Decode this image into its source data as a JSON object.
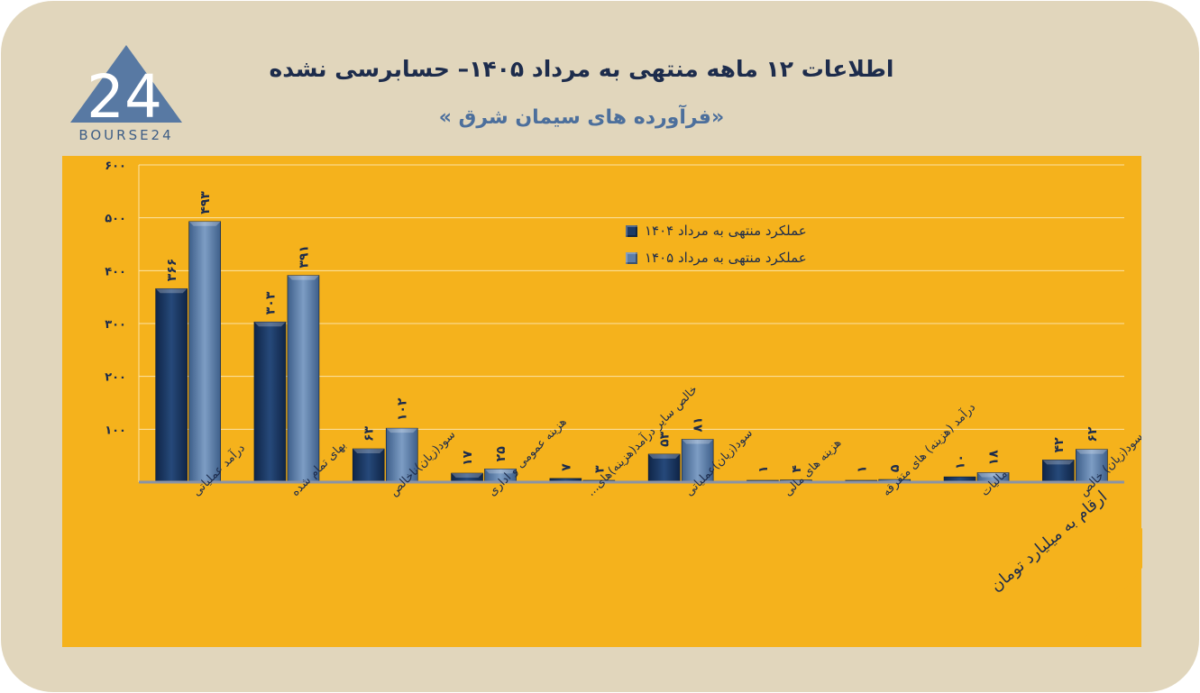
{
  "header": {
    "title": "اطلاعات ۱۲ ماهه منتهی به مرداد ۱۴۰۵– حسابرسی نشده",
    "subtitle": "«فرآورده های سیمان شرق »"
  },
  "logo": {
    "mark": "24",
    "text": "BOURSE24"
  },
  "unit_note": "ارقام به میلیارد تومان",
  "colors": {
    "panel": "#f5b21c",
    "card": "#e1d6bc",
    "series_1404": "#1d3b66",
    "series_1405": "#5d7ea8",
    "title": "#1d2c4c"
  },
  "chart_data": {
    "type": "bar",
    "categories": [
      "درآمد عملیاتی",
      "بهای تمام شده",
      "سود(زیان)ناخالص",
      "هزینه عمومی و اداری",
      "خالص سایر درآمد(هزینه)های...",
      "سود(زیان)عملیاتی",
      "هزینه های مالی",
      "درآمد (هزینه) های متفرقه",
      "مالیات",
      "سود(زیان) خالص"
    ],
    "series": [
      {
        "name": "عملکرد منتهی به مرداد ۱۴۰۴",
        "values": [
          366,
          303,
          63,
          17,
          7,
          53,
          1,
          1,
          10,
          42
        ],
        "labels": [
          "۳۶۶",
          "۳۰۳",
          "۶۳",
          "۱۷",
          "۷",
          "۵۳",
          "۱",
          "۱",
          "۱۰",
          "۴۲"
        ]
      },
      {
        "name": "عملکرد منتهی به مرداد ۱۴۰۵",
        "values": [
          493,
          391,
          102,
          25,
          3,
          81,
          4,
          5,
          18,
          62
        ],
        "labels": [
          "۴۹۳",
          "۳۹۱",
          "۱۰۲",
          "۲۵",
          "۳",
          "۸۱",
          "۴",
          "۵",
          "۱۸",
          "۶۲"
        ]
      }
    ],
    "ylim": [
      0,
      600
    ],
    "yticks": [
      {
        "value": 100,
        "label": "۱۰۰"
      },
      {
        "value": 200,
        "label": "۲۰۰"
      },
      {
        "value": 300,
        "label": "۳۰۰"
      },
      {
        "value": 400,
        "label": "۴۰۰"
      },
      {
        "value": 500,
        "label": "۵۰۰"
      },
      {
        "value": 600,
        "label": "۶۰۰"
      }
    ],
    "grid": true,
    "legend_position": "top-right"
  }
}
